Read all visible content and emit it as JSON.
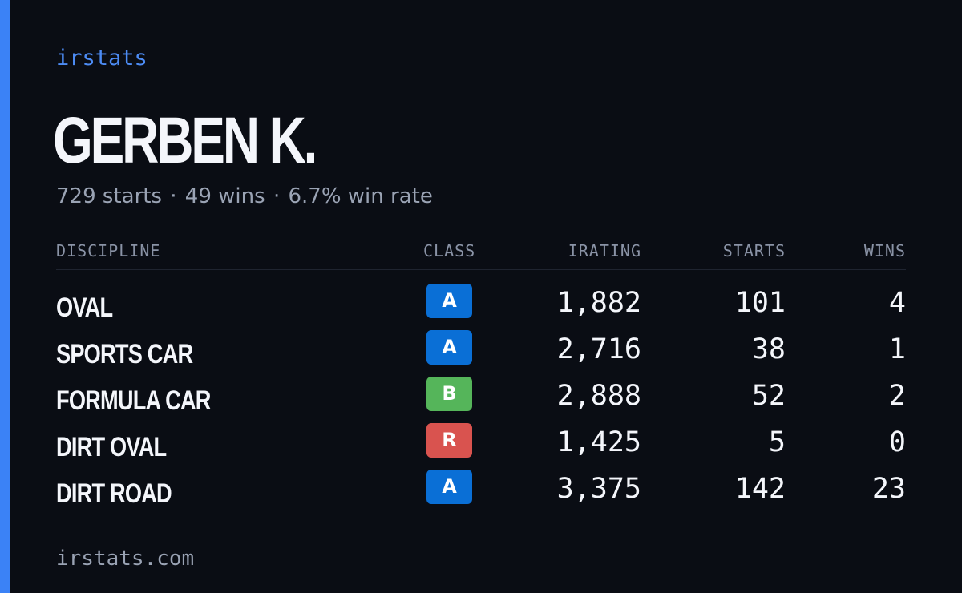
{
  "brand": "irstats",
  "driver": {
    "name": "GERBEN K.",
    "starts_summary": "729 starts",
    "wins_summary": "49 wins",
    "win_rate_summary": "6.7% win rate",
    "separator": "·"
  },
  "table": {
    "headers": {
      "discipline": "DISCIPLINE",
      "class": "CLASS",
      "irating": "IRATING",
      "starts": "STARTS",
      "wins": "WINS"
    },
    "rows": [
      {
        "discipline": "OVAL",
        "class": "A",
        "class_color": "#0a6fd6",
        "irating": "1,882",
        "starts": "101",
        "wins": "4"
      },
      {
        "discipline": "SPORTS CAR",
        "class": "A",
        "class_color": "#0a6fd6",
        "irating": "2,716",
        "starts": "38",
        "wins": "1"
      },
      {
        "discipline": "FORMULA CAR",
        "class": "B",
        "class_color": "#55b55a",
        "irating": "2,888",
        "starts": "52",
        "wins": "2"
      },
      {
        "discipline": "DIRT OVAL",
        "class": "R",
        "class_color": "#d9534f",
        "irating": "1,425",
        "starts": "5",
        "wins": "0"
      },
      {
        "discipline": "DIRT ROAD",
        "class": "A",
        "class_color": "#0a6fd6",
        "irating": "3,375",
        "starts": "142",
        "wins": "23"
      }
    ]
  },
  "footer": "irstats.com",
  "colors": {
    "background": "#0a0d14",
    "accent": "#3b82f6",
    "brand_text": "#4d8cf5",
    "muted_text": "#9aa3b4"
  }
}
